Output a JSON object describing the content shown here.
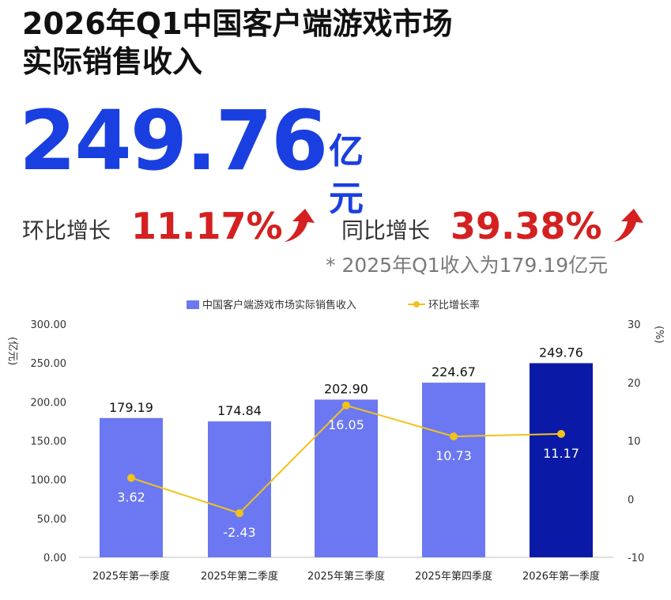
{
  "headline": {
    "title_line1": "2026年Q1中国客户端游戏市场",
    "title_line2": "实际销售收入",
    "value": "249.76",
    "unit": "亿元"
  },
  "growth": {
    "qoq_label": "环比增长",
    "qoq_value": "11.17%",
    "yoy_label": "同比增长",
    "yoy_value": "39.38%",
    "footnote": "* 2025年Q1收入为179.19亿元"
  },
  "colors": {
    "bar": "#6b78f2",
    "bar_highlight": "#0a1aa6",
    "line": "#f2c21b",
    "headline": "#1a3fe0",
    "growth": "#d42020"
  },
  "chart_data": {
    "type": "bar",
    "categories": [
      "2025年第一季度",
      "2025年第二季度",
      "2025年第三季度",
      "2025年第四季度",
      "2026年第一季度"
    ],
    "series": [
      {
        "name": "中国客户端游戏市场实际销售收入",
        "type": "bar",
        "values": [
          179.19,
          174.84,
          202.9,
          224.67,
          249.76
        ],
        "labels": [
          "179.19",
          "174.84",
          "202.90",
          "224.67",
          "249.76"
        ]
      },
      {
        "name": "环比增长率",
        "type": "line",
        "values": [
          3.62,
          -2.43,
          16.05,
          10.73,
          11.17
        ],
        "labels": [
          "3.62",
          "-2.43",
          "16.05",
          "10.73",
          "11.17"
        ]
      }
    ],
    "y_left": {
      "label": "(亿元)",
      "ylim": [
        0,
        300
      ],
      "ticks": [
        "0.00",
        "50.00",
        "100.00",
        "150.00",
        "200.00",
        "250.00",
        "300.00"
      ]
    },
    "y_right": {
      "label": "(%)",
      "ylim": [
        -10,
        30
      ],
      "ticks": [
        "-10",
        "0",
        "10",
        "20",
        "30"
      ]
    },
    "legend_position": "top-center",
    "grid": false
  }
}
